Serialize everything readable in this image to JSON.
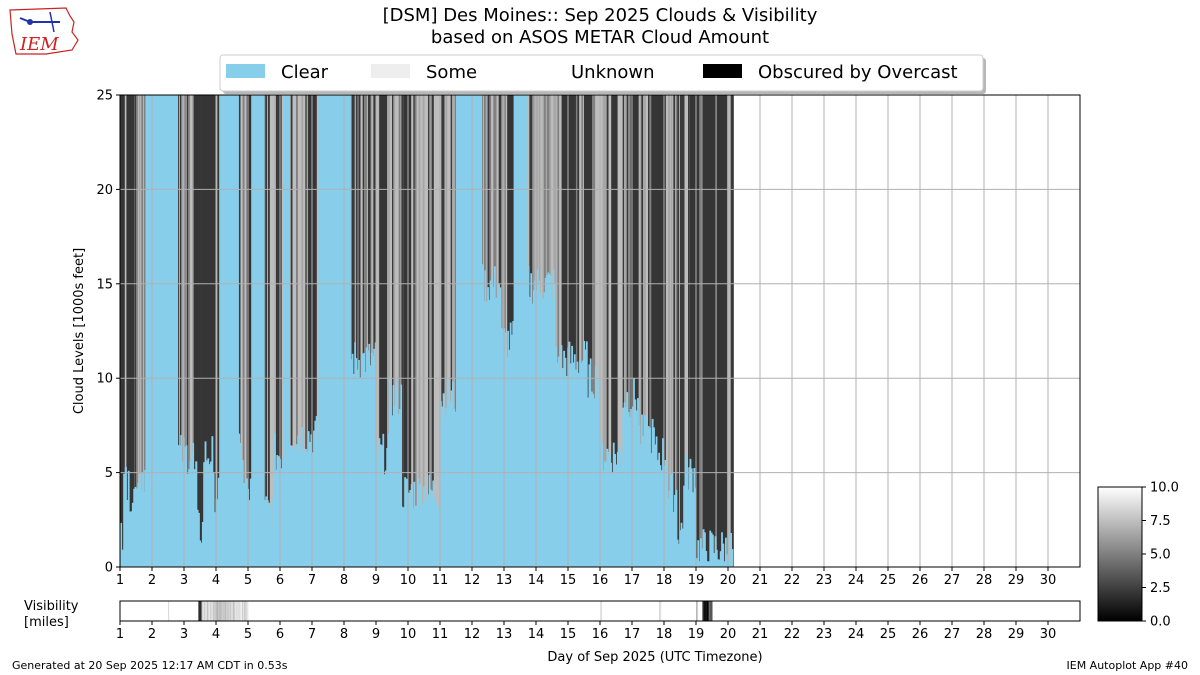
{
  "header": {
    "title_line1": "[DSM] Des Moines:: Sep 2025 Clouds & Visibility",
    "title_line2": "based on ASOS METAR Cloud Amount"
  },
  "logo": {
    "text": "IEM",
    "color": "#cc2222"
  },
  "footer": {
    "left": "Generated at 20 Sep 2025 12:17 AM CDT in 0.53s",
    "right": "IEM Autoplot App #40"
  },
  "chart_data": [
    {
      "type": "area",
      "ylabel": "Cloud Levels [1000s feet]",
      "ylim": [
        0,
        25
      ],
      "xlim": [
        1,
        31
      ],
      "x_ticks": [
        1,
        2,
        3,
        4,
        5,
        6,
        7,
        8,
        9,
        10,
        11,
        12,
        13,
        14,
        15,
        16,
        17,
        18,
        19,
        20,
        21,
        22,
        23,
        24,
        25,
        26,
        27,
        28,
        29,
        30
      ],
      "y_ticks": [
        0,
        5,
        10,
        15,
        20,
        25
      ],
      "grid": true,
      "legend": {
        "placement": "top-center",
        "entries": [
          {
            "label": "Clear",
            "color": "#87ceeb"
          },
          {
            "label": "Some",
            "color": "#eeeeee"
          },
          {
            "label": "Unknown",
            "color": "#ffffff"
          },
          {
            "label": "Obscured by Overcast",
            "color": "#000000"
          }
        ]
      },
      "data_end_day": 20.15,
      "clear_ceiling_segments": [
        [
          1.0,
          1.1,
          2
        ],
        [
          1.1,
          1.2,
          6
        ],
        [
          1.2,
          1.5,
          4
        ],
        [
          1.5,
          1.8,
          5
        ],
        [
          1.8,
          2.8,
          25
        ],
        [
          2.8,
          3.3,
          6
        ],
        [
          3.3,
          3.4,
          5
        ],
        [
          3.4,
          3.6,
          2
        ],
        [
          3.6,
          3.9,
          6
        ],
        [
          3.9,
          4.1,
          4
        ],
        [
          4.1,
          4.7,
          25
        ],
        [
          4.7,
          4.85,
          6
        ],
        [
          4.85,
          5.1,
          4
        ],
        [
          5.1,
          5.5,
          25
        ],
        [
          5.5,
          5.8,
          3
        ],
        [
          5.8,
          6.1,
          6
        ],
        [
          6.1,
          6.3,
          25
        ],
        [
          6.3,
          6.7,
          7
        ],
        [
          6.7,
          7.2,
          7
        ],
        [
          7.2,
          7.6,
          25
        ],
        [
          7.6,
          8.2,
          25
        ],
        [
          8.2,
          8.6,
          11
        ],
        [
          8.6,
          9.0,
          11
        ],
        [
          9.0,
          9.4,
          6
        ],
        [
          9.4,
          9.8,
          9
        ],
        [
          9.8,
          10.0,
          4
        ],
        [
          10.0,
          10.6,
          4
        ],
        [
          10.6,
          11.0,
          4
        ],
        [
          11.0,
          11.5,
          9
        ],
        [
          11.5,
          11.9,
          25
        ],
        [
          11.9,
          12.3,
          25
        ],
        [
          12.3,
          12.6,
          15
        ],
        [
          12.6,
          12.9,
          15
        ],
        [
          12.9,
          13.3,
          12
        ],
        [
          13.3,
          13.7,
          25
        ],
        [
          13.7,
          14.6,
          15
        ],
        [
          14.6,
          15.1,
          11
        ],
        [
          15.1,
          15.6,
          11
        ],
        [
          15.6,
          16.0,
          10
        ],
        [
          16.0,
          16.4,
          6
        ],
        [
          16.4,
          16.7,
          6
        ],
        [
          16.7,
          17.2,
          9
        ],
        [
          17.2,
          17.7,
          7
        ],
        [
          17.7,
          18.1,
          6
        ],
        [
          18.1,
          18.4,
          4
        ],
        [
          18.4,
          18.6,
          2
        ],
        [
          18.6,
          19.0,
          5
        ],
        [
          19.0,
          19.5,
          1
        ],
        [
          19.5,
          20.15,
          1
        ]
      ],
      "overcast_heavy_days": [
        [
          1.0,
          1.15
        ],
        [
          1.2,
          1.45
        ],
        [
          2.3,
          2.5
        ],
        [
          3.3,
          3.55
        ],
        [
          3.55,
          4.0
        ],
        [
          5.0,
          5.15
        ],
        [
          5.95,
          6.05
        ],
        [
          6.9,
          7.15
        ],
        [
          9.1,
          9.35
        ],
        [
          9.85,
          10.1
        ],
        [
          13.1,
          13.3
        ],
        [
          14.8,
          15.2
        ],
        [
          15.5,
          15.75
        ],
        [
          16.35,
          16.55
        ],
        [
          16.95,
          17.2
        ],
        [
          17.6,
          18.05
        ],
        [
          18.8,
          19.1
        ],
        [
          19.2,
          19.6
        ],
        [
          19.65,
          19.95
        ]
      ]
    },
    {
      "type": "heatmap",
      "ylabel": "Visibility\n[miles]",
      "xlabel": "Day of Sep 2025 (UTC Timezone)",
      "xlim": [
        1,
        31
      ],
      "x_ticks": [
        1,
        2,
        3,
        4,
        5,
        6,
        7,
        8,
        9,
        10,
        11,
        12,
        13,
        14,
        15,
        16,
        17,
        18,
        19,
        20,
        21,
        22,
        23,
        24,
        25,
        26,
        27,
        28,
        29,
        30
      ],
      "colorbar": {
        "min": 0,
        "max": 10,
        "ticks": [
          0,
          2.5,
          5,
          7.5,
          10
        ],
        "tick_labels": [
          "0.0",
          "2.5",
          "5.0",
          "7.5",
          "10.0"
        ]
      },
      "low_visibility_bands": [
        [
          2.5,
          2.52,
          8
        ],
        [
          3.45,
          3.55,
          1
        ],
        [
          3.55,
          4.0,
          8.5
        ],
        [
          4.0,
          4.4,
          7.5
        ],
        [
          4.4,
          5.0,
          8.5
        ],
        [
          16.0,
          16.05,
          9
        ],
        [
          17.85,
          17.9,
          9
        ],
        [
          19.0,
          19.05,
          8
        ],
        [
          19.2,
          19.4,
          1
        ],
        [
          19.4,
          19.5,
          4
        ]
      ],
      "data_end_day": 20.15
    }
  ]
}
